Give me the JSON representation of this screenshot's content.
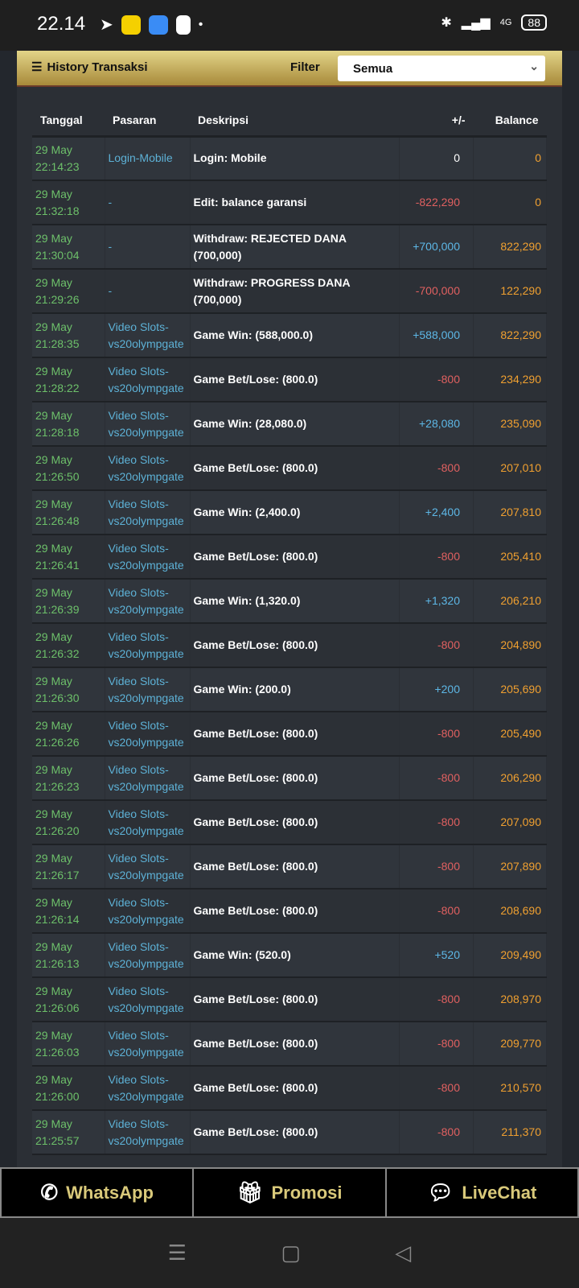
{
  "status_bar": {
    "time": "22.14",
    "battery": "88",
    "network": "4G"
  },
  "panel": {
    "title": "History Transaksi",
    "filter_label": "Filter",
    "filter_value": "Semua"
  },
  "table": {
    "headers": [
      "Tanggal",
      "Pasaran",
      "Deskripsi",
      "+/-",
      "Balance"
    ],
    "rows": [
      {
        "date": "29 May",
        "time": "22:14:23",
        "pasaran": "Login-Mobile",
        "desc": "Login: Mobile",
        "amount": "0",
        "balance": "0",
        "sign": "zero"
      },
      {
        "date": "29 May",
        "time": "21:32:18",
        "pasaran": "-",
        "desc": "Edit: balance garansi",
        "amount": "-822,290",
        "balance": "0",
        "sign": "neg"
      },
      {
        "date": "29 May",
        "time": "21:30:04",
        "pasaran": "-",
        "desc": "Withdraw: REJECTED DANA (700,000)",
        "amount": "+700,000",
        "balance": "822,290",
        "sign": "pos"
      },
      {
        "date": "29 May",
        "time": "21:29:26",
        "pasaran": "-",
        "desc": "Withdraw: PROGRESS DANA (700,000)",
        "amount": "-700,000",
        "balance": "122,290",
        "sign": "neg"
      },
      {
        "date": "29 May",
        "time": "21:28:35",
        "pasaran": "Video Slots-vs20olympgate",
        "desc": "Game Win: (588,000.0)",
        "amount": "+588,000",
        "balance": "822,290",
        "sign": "pos"
      },
      {
        "date": "29 May",
        "time": "21:28:22",
        "pasaran": "Video Slots-vs20olympgate",
        "desc": "Game Bet/Lose: (800.0)",
        "amount": "-800",
        "balance": "234,290",
        "sign": "neg"
      },
      {
        "date": "29 May",
        "time": "21:28:18",
        "pasaran": "Video Slots-vs20olympgate",
        "desc": "Game Win: (28,080.0)",
        "amount": "+28,080",
        "balance": "235,090",
        "sign": "pos"
      },
      {
        "date": "29 May",
        "time": "21:26:50",
        "pasaran": "Video Slots-vs20olympgate",
        "desc": "Game Bet/Lose: (800.0)",
        "amount": "-800",
        "balance": "207,010",
        "sign": "neg"
      },
      {
        "date": "29 May",
        "time": "21:26:48",
        "pasaran": "Video Slots-vs20olympgate",
        "desc": "Game Win: (2,400.0)",
        "amount": "+2,400",
        "balance": "207,810",
        "sign": "pos"
      },
      {
        "date": "29 May",
        "time": "21:26:41",
        "pasaran": "Video Slots-vs20olympgate",
        "desc": "Game Bet/Lose: (800.0)",
        "amount": "-800",
        "balance": "205,410",
        "sign": "neg"
      },
      {
        "date": "29 May",
        "time": "21:26:39",
        "pasaran": "Video Slots-vs20olympgate",
        "desc": "Game Win: (1,320.0)",
        "amount": "+1,320",
        "balance": "206,210",
        "sign": "pos"
      },
      {
        "date": "29 May",
        "time": "21:26:32",
        "pasaran": "Video Slots-vs20olympgate",
        "desc": "Game Bet/Lose: (800.0)",
        "amount": "-800",
        "balance": "204,890",
        "sign": "neg"
      },
      {
        "date": "29 May",
        "time": "21:26:30",
        "pasaran": "Video Slots-vs20olympgate",
        "desc": "Game Win: (200.0)",
        "amount": "+200",
        "balance": "205,690",
        "sign": "pos"
      },
      {
        "date": "29 May",
        "time": "21:26:26",
        "pasaran": "Video Slots-vs20olympgate",
        "desc": "Game Bet/Lose: (800.0)",
        "amount": "-800",
        "balance": "205,490",
        "sign": "neg"
      },
      {
        "date": "29 May",
        "time": "21:26:23",
        "pasaran": "Video Slots-vs20olympgate",
        "desc": "Game Bet/Lose: (800.0)",
        "amount": "-800",
        "balance": "206,290",
        "sign": "neg"
      },
      {
        "date": "29 May",
        "time": "21:26:20",
        "pasaran": "Video Slots-vs20olympgate",
        "desc": "Game Bet/Lose: (800.0)",
        "amount": "-800",
        "balance": "207,090",
        "sign": "neg"
      },
      {
        "date": "29 May",
        "time": "21:26:17",
        "pasaran": "Video Slots-vs20olympgate",
        "desc": "Game Bet/Lose: (800.0)",
        "amount": "-800",
        "balance": "207,890",
        "sign": "neg"
      },
      {
        "date": "29 May",
        "time": "21:26:14",
        "pasaran": "Video Slots-vs20olympgate",
        "desc": "Game Bet/Lose: (800.0)",
        "amount": "-800",
        "balance": "208,690",
        "sign": "neg"
      },
      {
        "date": "29 May",
        "time": "21:26:13",
        "pasaran": "Video Slots-vs20olympgate",
        "desc": "Game Win: (520.0)",
        "amount": "+520",
        "balance": "209,490",
        "sign": "pos"
      },
      {
        "date": "29 May",
        "time": "21:26:06",
        "pasaran": "Video Slots-vs20olympgate",
        "desc": "Game Bet/Lose: (800.0)",
        "amount": "-800",
        "balance": "208,970",
        "sign": "neg"
      },
      {
        "date": "29 May",
        "time": "21:26:03",
        "pasaran": "Video Slots-vs20olympgate",
        "desc": "Game Bet/Lose: (800.0)",
        "amount": "-800",
        "balance": "209,770",
        "sign": "neg"
      },
      {
        "date": "29 May",
        "time": "21:26:00",
        "pasaran": "Video Slots-vs20olympgate",
        "desc": "Game Bet/Lose: (800.0)",
        "amount": "-800",
        "balance": "210,570",
        "sign": "neg"
      },
      {
        "date": "29 May",
        "time": "21:25:57",
        "pasaran": "Video Slots-vs20olympgate",
        "desc": "Game Bet/Lose: (800.0)",
        "amount": "-800",
        "balance": "211,370",
        "sign": "neg"
      }
    ]
  },
  "bottom_bar": {
    "whatsapp": "WhatsApp",
    "promosi": "Promosi",
    "livechat": "LiveChat"
  },
  "colors": {
    "date": "#6dc06a",
    "pasaran": "#5db1d6",
    "positive": "#5db7e6",
    "negative": "#e06060",
    "balance": "#f0a030",
    "button_text": "#d9c97a"
  }
}
